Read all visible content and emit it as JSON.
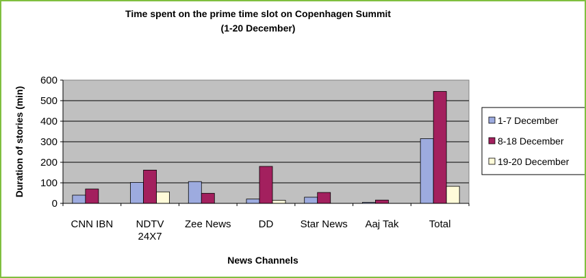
{
  "chart_data": {
    "type": "bar",
    "title": "Time spent on the prime time slot on Copenhagen Summit",
    "subtitle": "(1-20 December)",
    "xlabel": "News Channels",
    "ylabel": "Duration of stories (min)",
    "ylim": [
      0,
      600
    ],
    "yticks": [
      "0",
      "100",
      "200",
      "300",
      "400",
      "500",
      "600"
    ],
    "grid": true,
    "legend_position": "right",
    "categories": [
      [
        "CNN IBN"
      ],
      [
        "NDTV",
        "24X7"
      ],
      [
        "Zee News"
      ],
      [
        "DD"
      ],
      [
        "Star News"
      ],
      [
        "Aaj Tak"
      ],
      [
        "Total"
      ]
    ],
    "series": [
      {
        "name": "1-7 December",
        "color": "#9dabdf",
        "values": [
          40,
          102,
          106,
          21,
          30,
          5,
          315
        ]
      },
      {
        "name": "8-18 December",
        "color": "#a3205e",
        "values": [
          70,
          162,
          49,
          180,
          53,
          16,
          545
        ]
      },
      {
        "name": "19-20 December",
        "color": "#fffbd9",
        "values": [
          0,
          56,
          0,
          15,
          0,
          0,
          83
        ]
      }
    ]
  }
}
